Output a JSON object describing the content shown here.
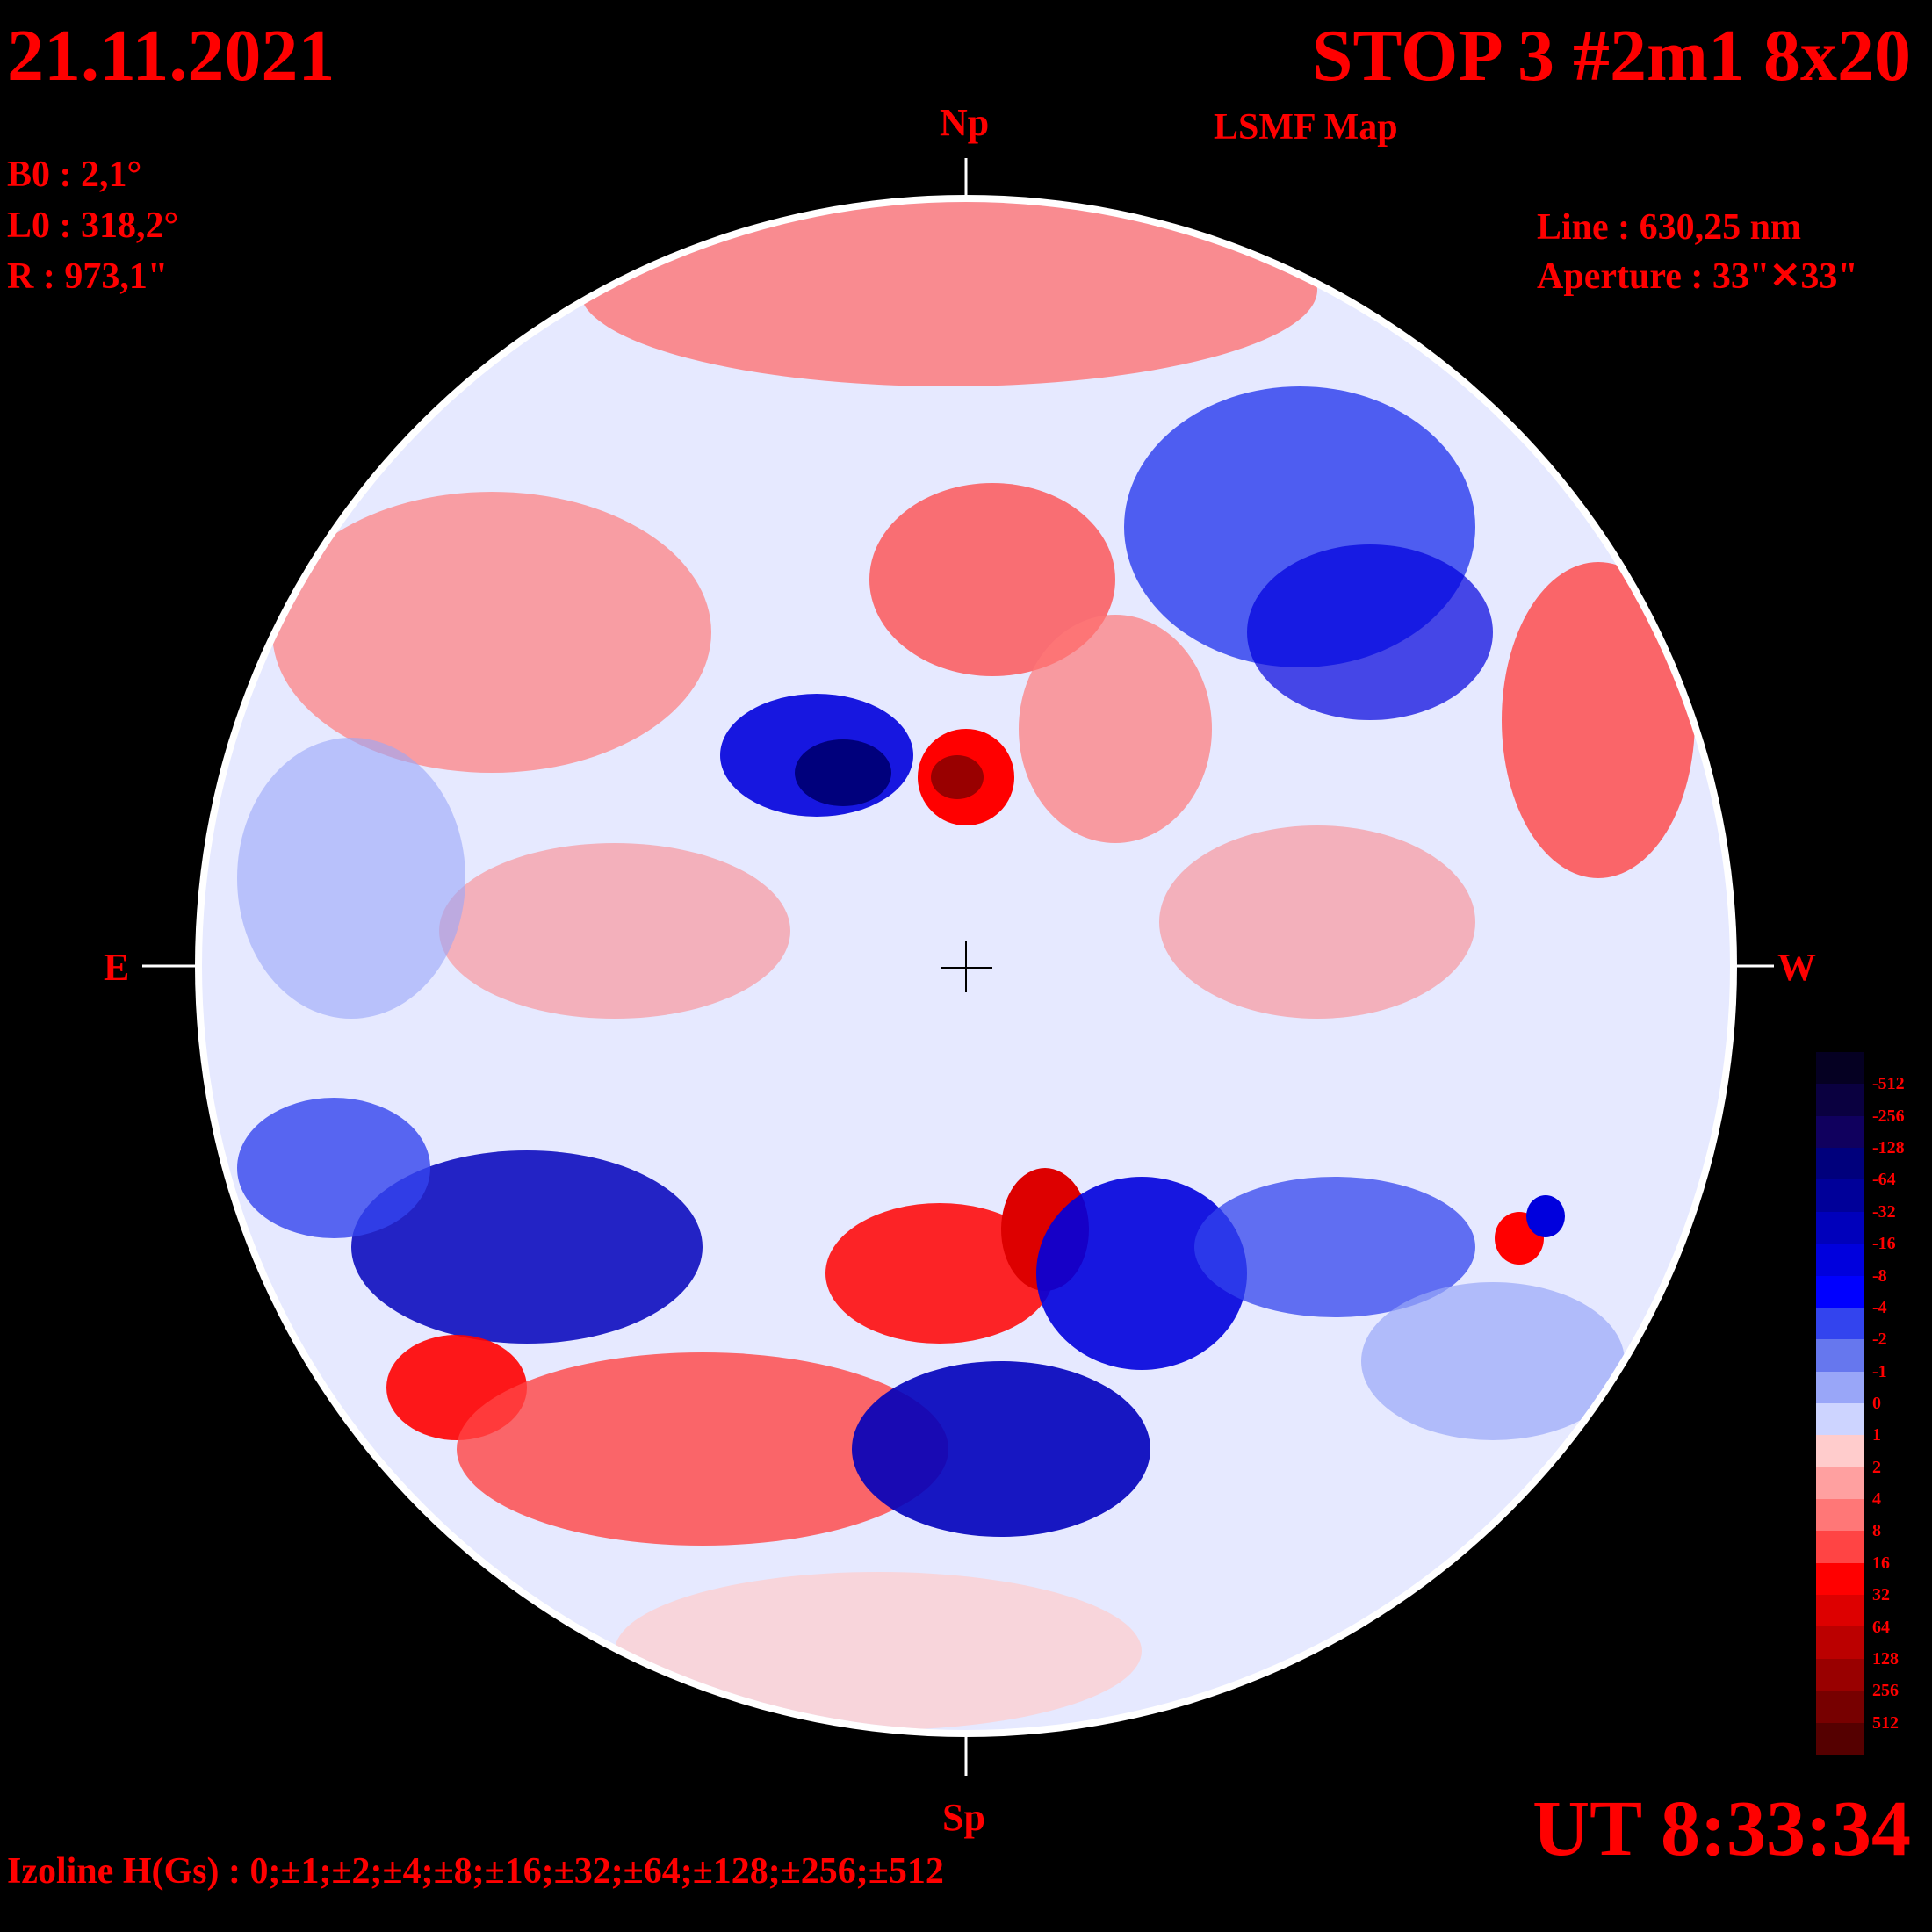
{
  "header": {
    "date": "21.11.2021",
    "title": "STOP 3 #2m1 8x20",
    "subtitle": "LSMF  Map"
  },
  "params": {
    "b0": "B0 : 2,1°",
    "l0": "L0 : 318,2°",
    "r": "R  : 973,1\"",
    "line": "Line :  630,25 nm",
    "aperture": "Aperture : 33\"✕33\""
  },
  "directions": {
    "north": "Np",
    "south": "Sp",
    "east": "E",
    "west": "W"
  },
  "time": "UT 8:33:34",
  "izoline": "Izoline H(Gs) : 0;±1;±2;±4;±8;±16;±32;±64;±128;±256;±512",
  "colorbar": {
    "labels": [
      "-512",
      "-256",
      "-128",
      "-64",
      "-32",
      "-16",
      "-8",
      "-4",
      "-2",
      "-1",
      "0",
      "1",
      "2",
      "4",
      "8",
      "16",
      "32",
      "64",
      "128",
      "256",
      "512"
    ],
    "colors": [
      "#050022",
      "#0a0040",
      "#10005e",
      "#00007c",
      "#000099",
      "#0000bb",
      "#0000dd",
      "#0000ff",
      "#3344ee",
      "#6677ee",
      "#99a6f8",
      "#cdd4ff",
      "#ffcccc",
      "#ffa0a0",
      "#ff7777",
      "#ff4444",
      "#ff0000",
      "#dd0000",
      "#bb0000",
      "#990000",
      "#770000",
      "#550000"
    ]
  }
}
